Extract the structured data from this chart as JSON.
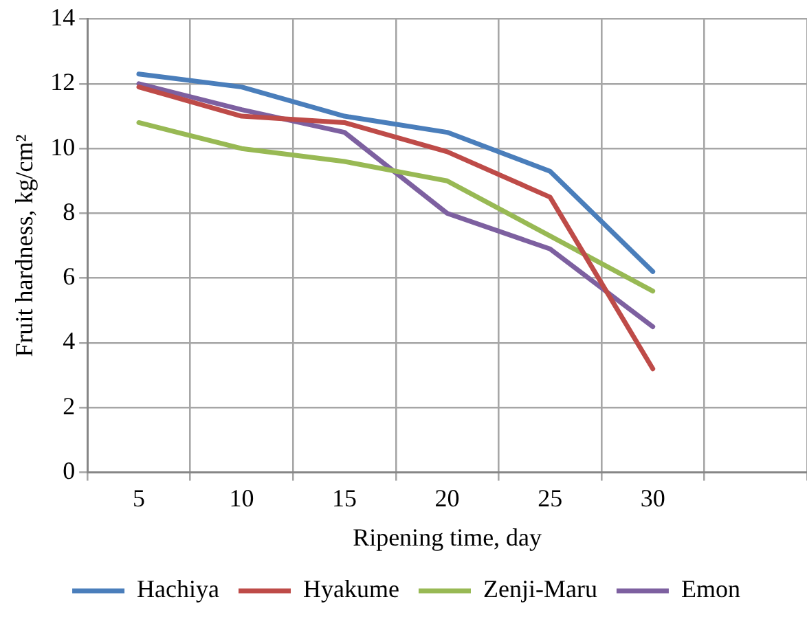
{
  "chart_data": {
    "type": "line",
    "xlabel": "Ripening time, day",
    "ylabel": "Fruit hardness, kg/cm²",
    "categories": [
      "5",
      "10",
      "15",
      "20",
      "25",
      "30",
      null
    ],
    "series": [
      {
        "name": "Hachiya",
        "color": "#4a7ebb",
        "values": [
          12.3,
          11.9,
          11.0,
          10.5,
          9.3,
          6.2,
          null
        ]
      },
      {
        "name": "Hyakume",
        "color": "#be4b48",
        "values": [
          11.9,
          11.0,
          10.8,
          9.9,
          8.5,
          3.2,
          null
        ]
      },
      {
        "name": "Zenji-Maru",
        "color": "#98b954",
        "values": [
          10.8,
          10.0,
          9.6,
          9.0,
          7.3,
          5.6,
          null
        ]
      },
      {
        "name": "Emon",
        "color": "#7d60a0",
        "values": [
          12.0,
          11.2,
          10.5,
          8.0,
          6.9,
          4.5,
          null
        ]
      }
    ],
    "ylim": [
      0,
      14
    ],
    "yticks": [
      0,
      2,
      4,
      6,
      8,
      10,
      12,
      14
    ],
    "grid": true,
    "legend": "bottom",
    "marker": "none",
    "line_style": "solid"
  }
}
